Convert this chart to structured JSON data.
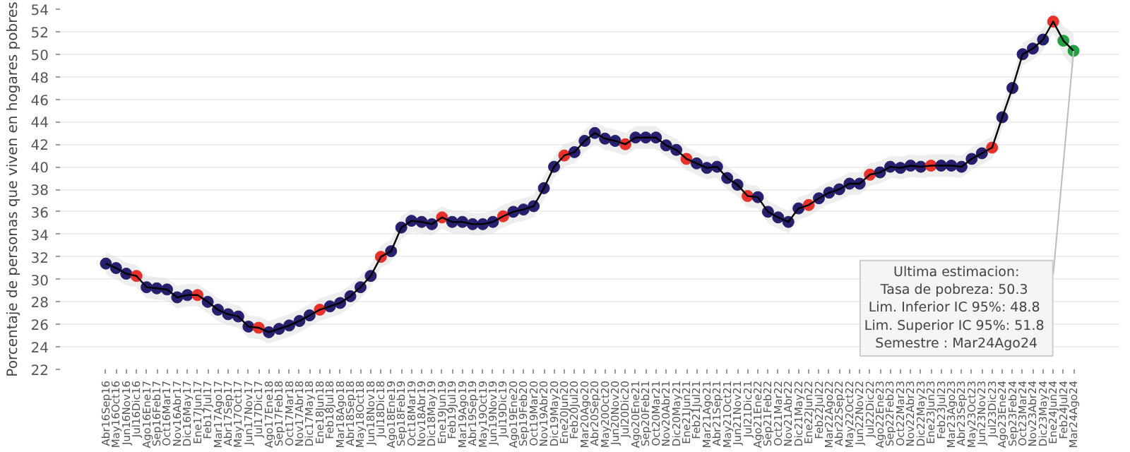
{
  "chart_data": {
    "type": "line",
    "ylabel": "Porcentaje de personas que viven en hogares pobres",
    "categories": [
      "Abr16Sep16",
      "May16Oct16",
      "Jun16Nov16",
      "Jul16Dic16",
      "Ago16Ene17",
      "Sep16Feb17",
      "Oct16Mar17",
      "Nov16Abr17",
      "Dic16May17",
      "Ene17Jun17",
      "Feb17Jul17",
      "Mar17Ago17",
      "Abr17Sep17",
      "May17Oct17",
      "Jun17Nov17",
      "Jul17Dic17",
      "Ago17Ene18",
      "Sep17Feb18",
      "Oct17Mar18",
      "Nov17Abr18",
      "Dic17May18",
      "Ene18Jun18",
      "Feb18Jul18",
      "Mar18Ago18",
      "Abr18Sep18",
      "May18Oct18",
      "Jun18Nov18",
      "Jul18Dic18",
      "Ago18Ene19",
      "Sep18Feb19",
      "Oct18Mar19",
      "Nov18Abr19",
      "Dic18May19",
      "Ene19Jun19",
      "Feb19Jul19",
      "Mar19Ago19",
      "Abr19Sep19",
      "May19Oct19",
      "Jun19Nov19",
      "Jul19Dic19",
      "Ago19Ene20",
      "Sep19Feb20",
      "Oct19Mar20",
      "Nov19Abr20",
      "Dic19May20",
      "Ene20Jun20",
      "Feb20Jul20",
      "Mar20Ago20",
      "Abr20Sep20",
      "May20Oct20",
      "Jun20Nov20",
      "Jul20Dic20",
      "Ago20Ene21",
      "Sep20Feb21",
      "Oct20Mar21",
      "Nov20Abr21",
      "Dic20May21",
      "Ene21Jun21",
      "Feb21Jul21",
      "Mar21Ago21",
      "Abr21Sep21",
      "May21Oct21",
      "Jun21Nov21",
      "Jul21Dic21",
      "Ago21Ene22",
      "Sep21Feb22",
      "Oct21Mar22",
      "Nov21Abr22",
      "Dic21May22",
      "Ene22Jun22",
      "Feb22Jul22",
      "Mar22Ago22",
      "Abr22Sep22",
      "May22Oct22",
      "Jun22Nov22",
      "Jul22Dic22",
      "Ago22Ene23",
      "Sep22Feb23",
      "Oct22Mar23",
      "Nov22Abr23",
      "Dic22May23",
      "Ene23Jun23",
      "Feb23Jul23",
      "Mar23Ago23",
      "Abr23Sep23",
      "May23Oct23",
      "Jun23Nov23",
      "Jul23Dic23",
      "Ago23Ene24",
      "Sep23Feb24",
      "Oct23Mar24",
      "Nov23Abr24",
      "Dic23May24",
      "Ene24Jun24",
      "Feb24Jul24",
      "Mar24Ago24"
    ],
    "series": [
      {
        "color": "#000000",
        "values": [
          31.4,
          31.0,
          30.5,
          30.3,
          29.3,
          29.2,
          29.1,
          28.4,
          28.6,
          28.6,
          28.0,
          27.3,
          26.9,
          26.7,
          25.8,
          25.7,
          25.3,
          25.6,
          25.9,
          26.3,
          26.8,
          27.3,
          27.6,
          27.9,
          28.5,
          29.3,
          30.3,
          32.0,
          32.5,
          34.6,
          35.2,
          35.1,
          34.9,
          35.5,
          35.1,
          35.1,
          34.9,
          34.9,
          35.1,
          35.6,
          36.0,
          36.2,
          36.5,
          38.1,
          40.0,
          41.0,
          41.3,
          42.3,
          43.0,
          42.5,
          42.3,
          42.0,
          42.6,
          42.6,
          42.6,
          41.9,
          41.5,
          40.7,
          40.3,
          39.9,
          40.0,
          39.0,
          38.4,
          37.4,
          37.3,
          36.0,
          35.5,
          35.1,
          36.3,
          36.6,
          37.2,
          37.7,
          38.0,
          38.5,
          38.5,
          39.3,
          39.5,
          40.0,
          39.9,
          40.1,
          40.0,
          40.1,
          40.1,
          40.1,
          40.0,
          40.7,
          41.2,
          41.7,
          44.4,
          47.0,
          50.0,
          50.5,
          51.3,
          52.9,
          51.2,
          50.3
        ],
        "lower": [
          30.4,
          30.0,
          29.5,
          29.3,
          28.3,
          28.2,
          28.1,
          27.4,
          27.6,
          27.6,
          27.0,
          26.3,
          25.9,
          25.7,
          24.8,
          24.7,
          24.3,
          24.6,
          24.9,
          25.3,
          25.8,
          26.3,
          26.6,
          26.9,
          27.5,
          28.3,
          29.3,
          31.0,
          31.5,
          33.6,
          34.2,
          34.1,
          33.9,
          34.5,
          34.1,
          34.1,
          33.9,
          33.9,
          34.1,
          34.6,
          35.0,
          35.2,
          35.5,
          37.1,
          39.0,
          40.0,
          40.3,
          41.3,
          42.0,
          41.5,
          41.3,
          41.0,
          41.6,
          41.6,
          41.6,
          40.9,
          40.5,
          39.7,
          39.3,
          38.9,
          39.0,
          38.0,
          37.4,
          36.4,
          36.3,
          35.0,
          34.5,
          34.1,
          35.3,
          35.6,
          36.2,
          36.7,
          37.0,
          37.5,
          37.5,
          38.3,
          38.5,
          39.0,
          38.9,
          39.1,
          39.0,
          39.1,
          39.1,
          39.1,
          39.0,
          39.7,
          40.2,
          40.7,
          43.4,
          46.0,
          49.0,
          49.5,
          50.3,
          51.9,
          49.9,
          48.8
        ],
        "upper": [
          32.4,
          32.0,
          31.5,
          31.3,
          30.3,
          30.2,
          30.1,
          29.4,
          29.6,
          29.6,
          29.0,
          28.3,
          27.9,
          27.7,
          26.8,
          26.7,
          26.3,
          26.6,
          26.9,
          27.3,
          27.8,
          28.3,
          28.6,
          28.9,
          29.5,
          30.3,
          31.3,
          33.0,
          33.5,
          35.6,
          36.2,
          36.1,
          35.9,
          36.5,
          36.1,
          36.1,
          35.9,
          35.9,
          36.1,
          36.6,
          37.0,
          37.2,
          37.5,
          39.1,
          41.0,
          42.0,
          42.3,
          43.3,
          44.0,
          43.5,
          43.3,
          43.0,
          43.6,
          43.6,
          43.6,
          42.9,
          42.5,
          41.7,
          41.3,
          40.9,
          41.0,
          40.0,
          39.4,
          38.4,
          38.3,
          37.0,
          36.5,
          36.1,
          37.3,
          37.6,
          38.2,
          38.7,
          39.0,
          39.5,
          39.5,
          40.3,
          40.5,
          41.0,
          40.9,
          41.1,
          41.0,
          41.1,
          41.1,
          41.1,
          41.0,
          41.7,
          42.2,
          42.7,
          45.4,
          48.0,
          51.0,
          51.5,
          52.3,
          53.9,
          52.5,
          51.8
        ],
        "colors": [
          "#26206e",
          "#26206e",
          "#26206e",
          "#e8312a",
          "#26206e",
          "#26206e",
          "#26206e",
          "#26206e",
          "#26206e",
          "#e8312a",
          "#26206e",
          "#26206e",
          "#26206e",
          "#26206e",
          "#26206e",
          "#e8312a",
          "#26206e",
          "#26206e",
          "#26206e",
          "#26206e",
          "#26206e",
          "#e8312a",
          "#26206e",
          "#26206e",
          "#26206e",
          "#26206e",
          "#26206e",
          "#e8312a",
          "#26206e",
          "#26206e",
          "#26206e",
          "#26206e",
          "#26206e",
          "#e8312a",
          "#26206e",
          "#26206e",
          "#26206e",
          "#26206e",
          "#26206e",
          "#e8312a",
          "#26206e",
          "#26206e",
          "#26206e",
          "#26206e",
          "#26206e",
          "#e8312a",
          "#26206e",
          "#26206e",
          "#26206e",
          "#26206e",
          "#26206e",
          "#e8312a",
          "#26206e",
          "#26206e",
          "#26206e",
          "#26206e",
          "#26206e",
          "#e8312a",
          "#26206e",
          "#26206e",
          "#26206e",
          "#26206e",
          "#26206e",
          "#e8312a",
          "#26206e",
          "#26206e",
          "#26206e",
          "#26206e",
          "#26206e",
          "#e8312a",
          "#26206e",
          "#26206e",
          "#26206e",
          "#26206e",
          "#26206e",
          "#e8312a",
          "#26206e",
          "#26206e",
          "#26206e",
          "#26206e",
          "#26206e",
          "#e8312a",
          "#26206e",
          "#26206e",
          "#26206e",
          "#26206e",
          "#26206e",
          "#e8312a",
          "#26206e",
          "#26206e",
          "#26206e",
          "#26206e",
          "#26206e",
          "#e8312a",
          "#23a043",
          "#23a043"
        ]
      }
    ],
    "ylim": [
      22,
      54
    ],
    "yticks": [
      22,
      24,
      26,
      28,
      30,
      32,
      34,
      36,
      38,
      40,
      42,
      44,
      46,
      48,
      50,
      52,
      54
    ],
    "grid": "y",
    "marker": "circle",
    "line_style": "solid",
    "annotations": [
      {
        "text": "Ultima estimacion:\nTasa de pobreza:  50.3\nLim. Inferior IC 95%:  48.8\nLim. Superior IC 95%:  51.8\nSemestre : Mar24Ago24",
        "x": "Mar24Ago24",
        "y": 50.3
      }
    ]
  }
}
